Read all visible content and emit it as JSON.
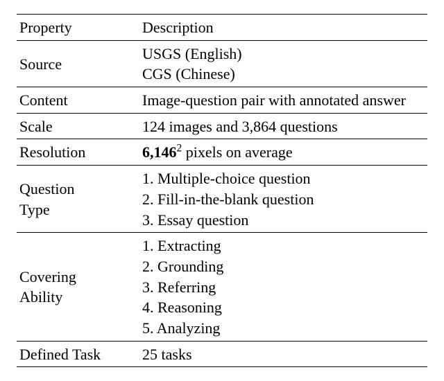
{
  "header": {
    "prop": "Property",
    "desc": "Description"
  },
  "rows": {
    "source": {
      "label": "Source",
      "v1": "USGS (English)",
      "v2": "CGS (Chinese)"
    },
    "content": {
      "label": "Content",
      "value": "Image-question pair with annotated answer"
    },
    "scale": {
      "label": "Scale",
      "value": "124 images and 3,864 questions"
    },
    "resolution": {
      "label": "Resolution",
      "bold": "6,146",
      "sup": "2",
      "suffix": " pixels on average"
    },
    "qtype": {
      "label1": "Question",
      "label2": "Type",
      "v1": "1. Multiple-choice question",
      "v2": "2. Fill-in-the-blank question",
      "v3": "3. Essay question"
    },
    "ability": {
      "label1": "Covering",
      "label2": "Ability",
      "v1": "1. Extracting",
      "v2": "2. Grounding",
      "v3": "3. Referring",
      "v4": "4. Reasoning",
      "v5": "5. Analyzing"
    },
    "task": {
      "label": "Defined Task",
      "value": "25 tasks"
    }
  }
}
